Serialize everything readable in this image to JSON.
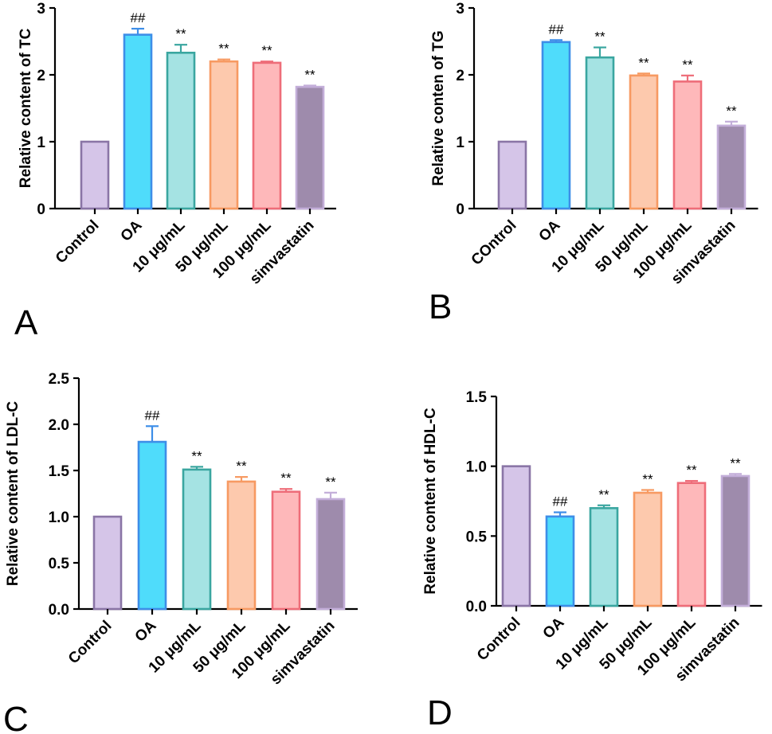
{
  "palette": {
    "fills": [
      "#d5c5e8",
      "#4fdcfb",
      "#a5e3e3",
      "#fdc9ad",
      "#feb8ba",
      "#9e8bac"
    ],
    "strokes": [
      "#8a75a6",
      "#3d8ee8",
      "#3aa6a0",
      "#f79a62",
      "#ee6d79",
      "#c3aed9"
    ]
  },
  "chart_data": [
    {
      "type": "bar",
      "panel": "A",
      "ylabel": "Relative content of TC",
      "ylim": [
        0,
        3
      ],
      "yticks": [
        "0",
        "1",
        "2",
        "3"
      ],
      "categories": [
        "Control",
        "OA",
        "10 μg/mL",
        "50 μg/mL",
        "100 μg/mL",
        "simvastatin"
      ],
      "values": [
        1.0,
        2.6,
        2.33,
        2.2,
        2.18,
        1.82
      ],
      "errors": [
        0,
        0.09,
        0.12,
        0.03,
        0.02,
        0.02
      ],
      "significance": [
        "",
        "##",
        "**",
        "**",
        "**",
        "**"
      ]
    },
    {
      "type": "bar",
      "panel": "B",
      "ylabel": "Relative conten of TG",
      "ylim": [
        0,
        3
      ],
      "yticks": [
        "0",
        "1",
        "2",
        "3"
      ],
      "categories": [
        "COntrol",
        "OA",
        "10 μg/mL",
        "50 μg/mL",
        "100 μg/mL",
        "simvastatin"
      ],
      "values": [
        1.0,
        2.49,
        2.26,
        1.99,
        1.9,
        1.24
      ],
      "errors": [
        0,
        0.03,
        0.15,
        0.03,
        0.09,
        0.06
      ],
      "significance": [
        "",
        "##",
        "**",
        "**",
        "**",
        "**"
      ]
    },
    {
      "type": "bar",
      "panel": "C",
      "ylabel": "Relative content of LDL-C",
      "ylim": [
        0,
        2.5
      ],
      "yticks": [
        "0.0",
        "0.5",
        "1.0",
        "1.5",
        "2.0",
        "2.5"
      ],
      "categories": [
        "Control",
        "OA",
        "10 μg/mL",
        "50 μg/mL",
        "100 μg/mL",
        "simvastatin"
      ],
      "values": [
        1.0,
        1.81,
        1.51,
        1.38,
        1.27,
        1.19
      ],
      "errors": [
        0,
        0.17,
        0.03,
        0.05,
        0.03,
        0.07
      ],
      "significance": [
        "",
        "##",
        "**",
        "**",
        "**",
        "**"
      ]
    },
    {
      "type": "bar",
      "panel": "D",
      "ylabel": "Relative content of HDL-C",
      "ylim": [
        0,
        1.5
      ],
      "yticks": [
        "0.0",
        "0.5",
        "1.0",
        "1.5"
      ],
      "categories": [
        "Control",
        "OA",
        "10 μg/mL",
        "50 μg/mL",
        "100 μg/mL",
        "simvastatin"
      ],
      "values": [
        1.0,
        0.64,
        0.7,
        0.81,
        0.88,
        0.93
      ],
      "errors": [
        0,
        0.03,
        0.02,
        0.02,
        0.015,
        0.015
      ],
      "significance": [
        "",
        "##",
        "**",
        "**",
        "**",
        "**"
      ]
    }
  ]
}
